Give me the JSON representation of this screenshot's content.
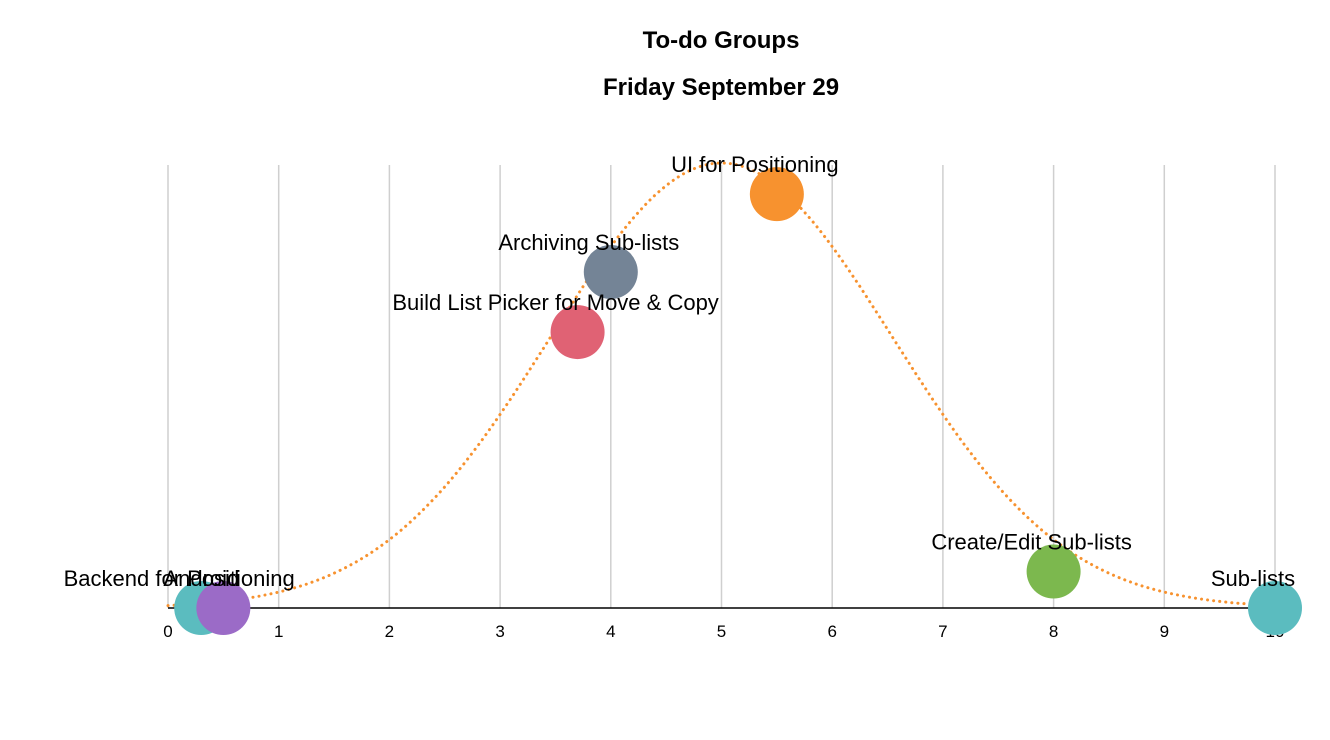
{
  "chart_data": {
    "type": "scatter",
    "title": "To-do Groups",
    "subtitle": "Friday September 29",
    "xlabel": "",
    "ylabel": "",
    "xlim": [
      0,
      10
    ],
    "ylim": [
      0,
      1
    ],
    "x_ticks": [
      0,
      1,
      2,
      3,
      4,
      5,
      6,
      7,
      8,
      9,
      10
    ],
    "grid": "vertical",
    "curve": {
      "style": "dotted",
      "color": "#f7922f",
      "shape": "bell",
      "peak_x": 5,
      "width": 1.55
    },
    "points": [
      {
        "label": "Backend for Positioning",
        "x": 0.3,
        "y": 0.0,
        "color": "#5bbcbf"
      },
      {
        "label": "Android",
        "x": 0.5,
        "y": 0.0,
        "color": "#9b6bc7"
      },
      {
        "label": "Build List Picker for Move & Copy",
        "x": 3.7,
        "y": 0.62,
        "color": "#e06274"
      },
      {
        "label": "Archiving Sub-lists",
        "x": 4.0,
        "y": 0.755,
        "color": "#748496"
      },
      {
        "label": "UI for Positioning",
        "x": 5.5,
        "y": 0.93,
        "color": "#f7922f"
      },
      {
        "label": "Create/Edit Sub-lists",
        "x": 8.0,
        "y": 0.082,
        "color": "#7cb84e"
      },
      {
        "label": "Sub-lists",
        "x": 10.0,
        "y": 0.0,
        "color": "#5bbcbf"
      }
    ]
  }
}
